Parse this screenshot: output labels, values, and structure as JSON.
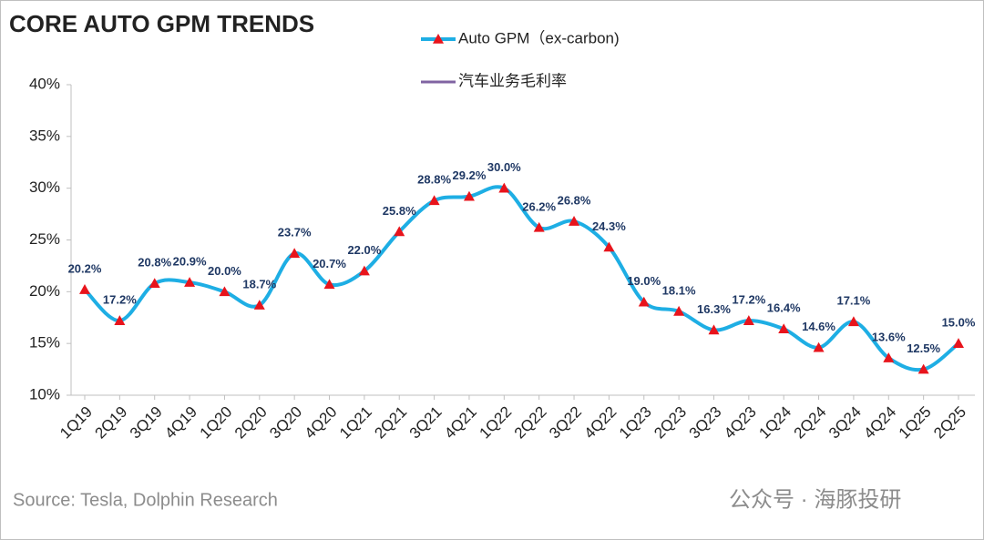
{
  "chart_data": {
    "type": "line",
    "title": "CORE AUTO GPM TRENDS",
    "source": "Source: Tesla, Dolphin Research",
    "footer": "公众号 · 海豚投研",
    "categories": [
      "1Q19",
      "2Q19",
      "3Q19",
      "4Q19",
      "1Q20",
      "2Q20",
      "3Q20",
      "4Q20",
      "1Q21",
      "2Q21",
      "3Q21",
      "4Q21",
      "1Q22",
      "2Q22",
      "3Q22",
      "4Q22",
      "1Q23",
      "2Q23",
      "3Q23",
      "4Q23",
      "1Q24",
      "2Q24",
      "3Q24",
      "4Q24",
      "1Q25",
      "2Q25"
    ],
    "series": [
      {
        "name": "Auto GPM（ex-carbon)",
        "color": "#1eaee4",
        "marker_color": "#e8141c",
        "values": [
          20.2,
          17.2,
          20.8,
          20.9,
          20.0,
          18.7,
          23.7,
          20.7,
          22.0,
          25.8,
          28.8,
          29.2,
          30.0,
          26.2,
          26.8,
          24.3,
          19.0,
          18.1,
          16.3,
          17.2,
          16.4,
          14.6,
          17.1,
          13.6,
          12.5,
          15.0
        ],
        "value_labels": [
          "20.2%",
          "17.2%",
          "20.8%",
          "20.9%",
          "20.0%",
          "18.7%",
          "23.7%",
          "20.7%",
          "22.0%",
          "25.8%",
          "28.8%",
          "29.2%",
          "30.0%",
          "26.2%",
          "26.8%",
          "24.3%",
          "19.0%",
          "18.1%",
          "16.3%",
          "17.2%",
          "16.4%",
          "14.6%",
          "17.1%",
          "13.6%",
          "12.5%",
          "15.0%"
        ]
      },
      {
        "name": "汽车业务毛利率",
        "color": "#8064a2",
        "values": [
          null,
          null,
          null,
          null,
          null,
          null,
          null,
          null,
          null,
          null,
          null,
          null,
          null,
          null,
          null,
          null,
          null,
          null,
          null,
          null,
          null,
          null,
          null,
          null,
          null,
          null
        ]
      }
    ],
    "ylim": [
      10,
      40
    ],
    "yticks": [
      {
        "value": 10,
        "label": "10%"
      },
      {
        "value": 15,
        "label": "15%"
      },
      {
        "value": 20,
        "label": "20%"
      },
      {
        "value": 25,
        "label": "25%"
      },
      {
        "value": 30,
        "label": "30%"
      },
      {
        "value": 35,
        "label": "35%"
      },
      {
        "value": 40,
        "label": "40%"
      }
    ],
    "grid": false
  }
}
